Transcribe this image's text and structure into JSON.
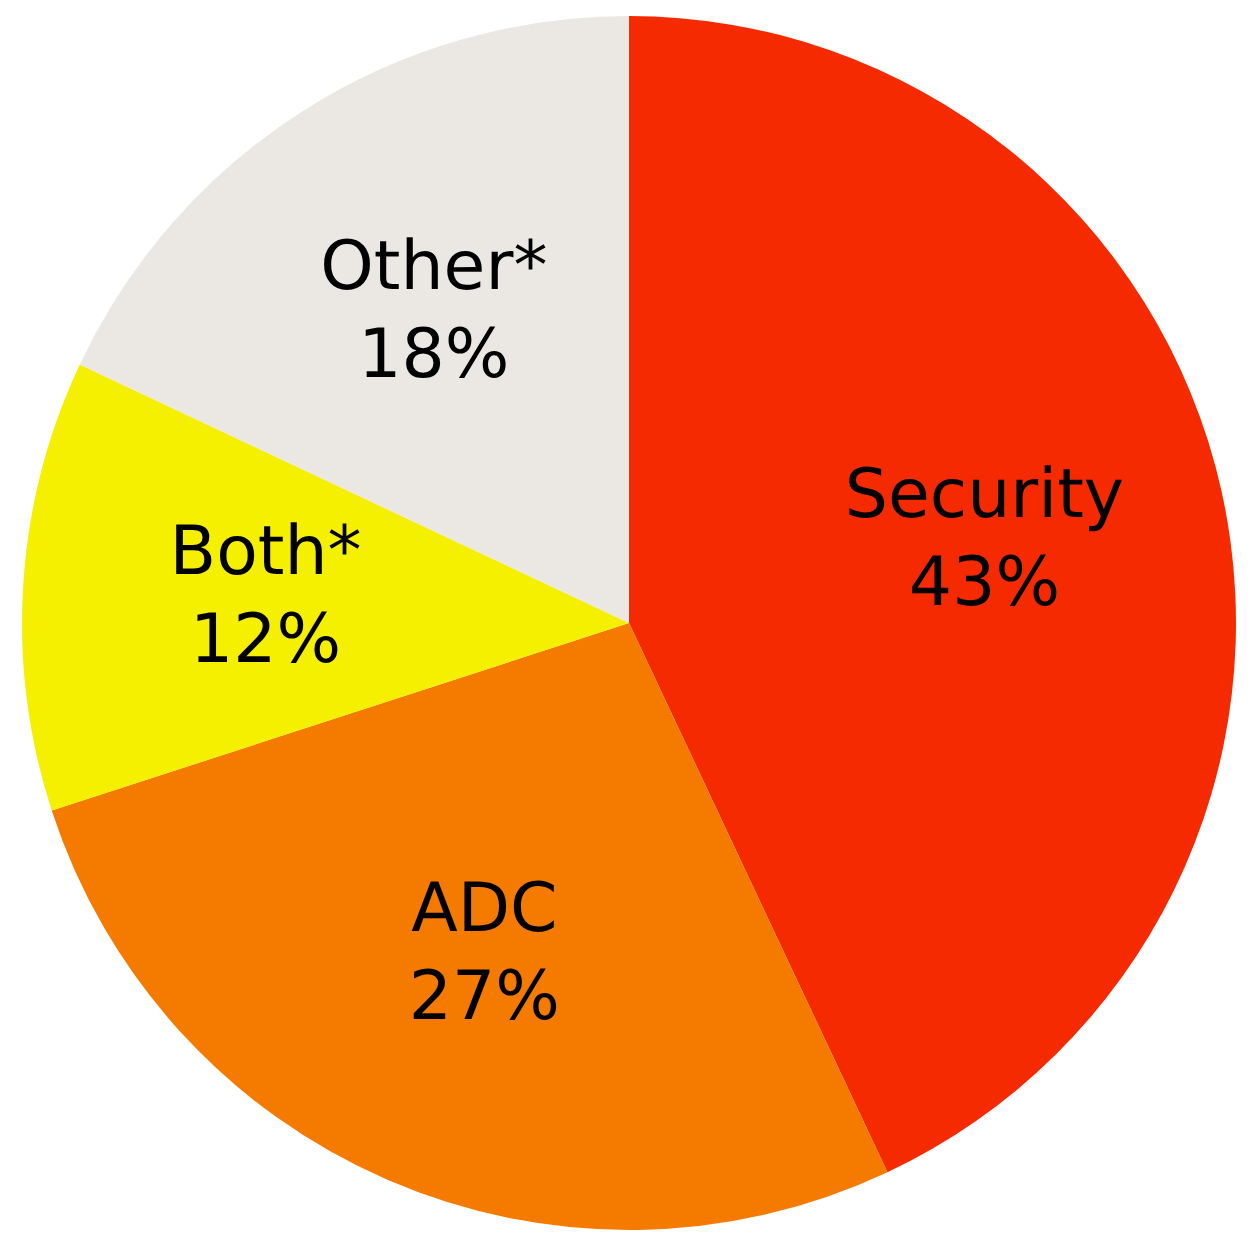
{
  "chart_data": {
    "type": "pie",
    "categories": [
      "Security",
      "ADC",
      "Both*",
      "Other*"
    ],
    "values": [
      43,
      27,
      12,
      18
    ],
    "value_labels": [
      "43%",
      "27%",
      "12%",
      "18%"
    ],
    "colors": [
      "#f52a00",
      "#f57a00",
      "#f5f000",
      "#ebe8e4"
    ]
  }
}
